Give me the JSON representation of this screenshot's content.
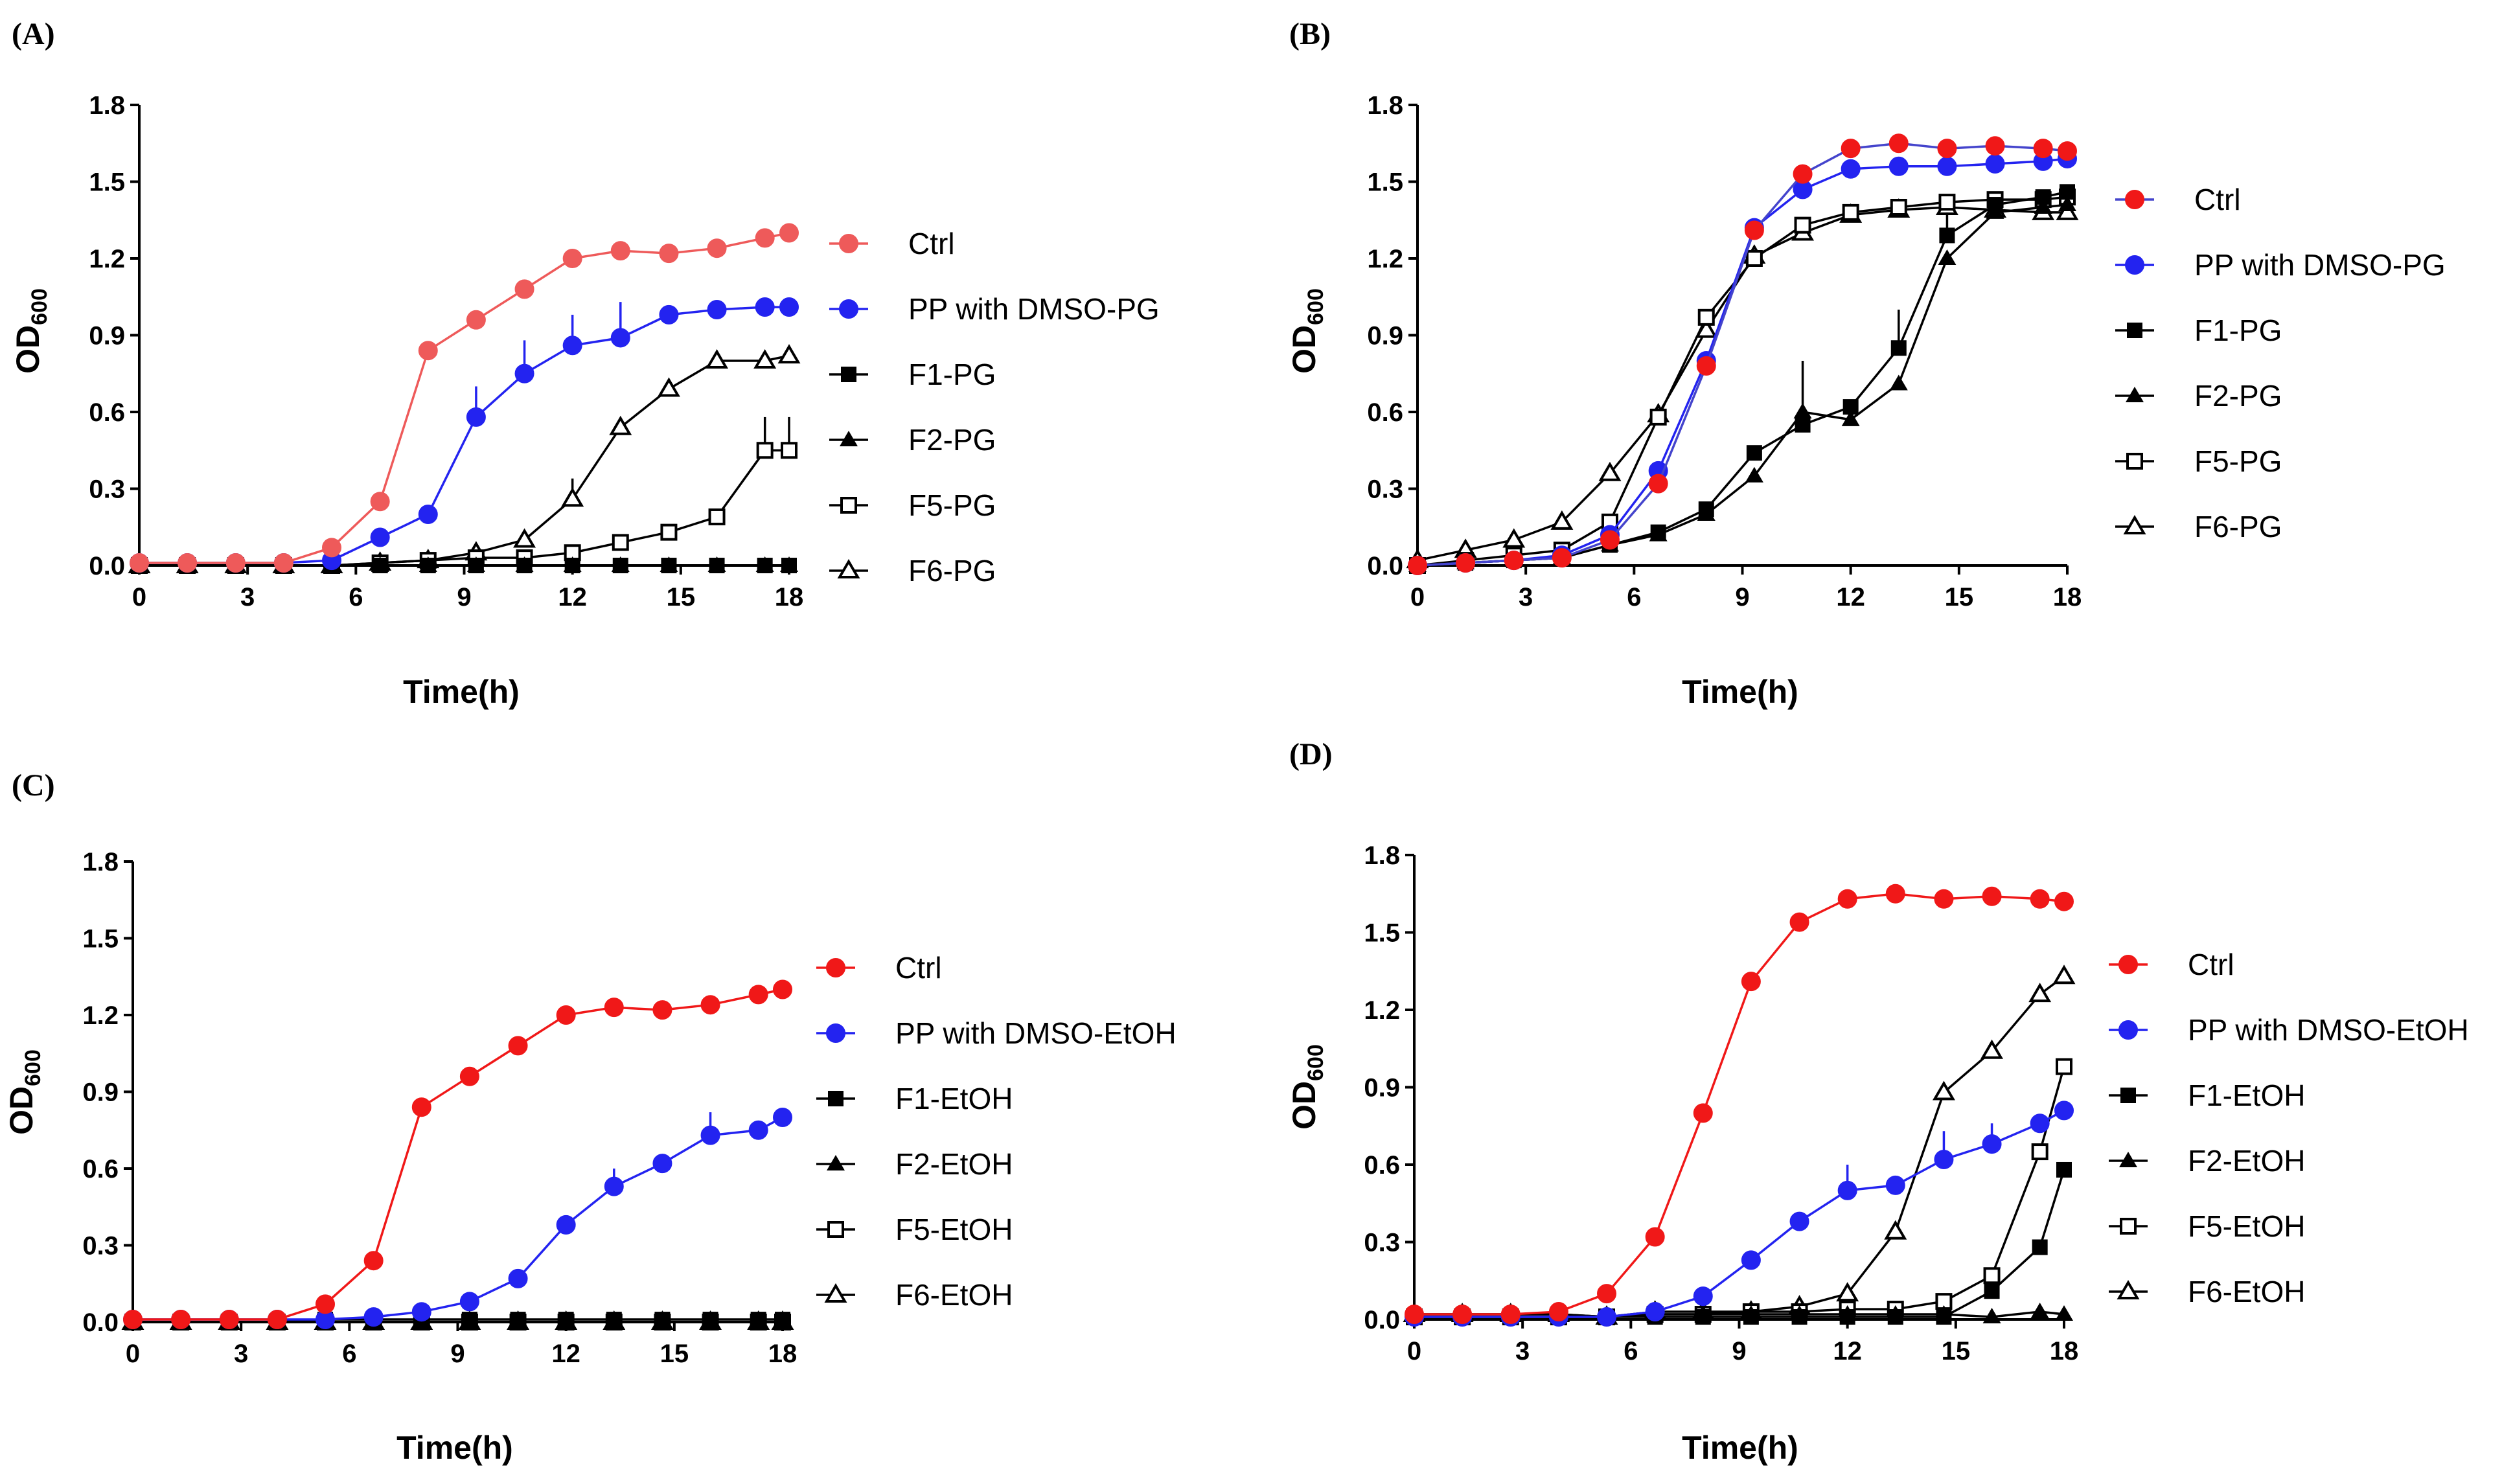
{
  "figure": {
    "y_unit_base": "OD",
    "y_unit_sub": "600",
    "x_title": "Time(h)"
  },
  "chart_data": [
    {
      "panel": "(A)",
      "type": "line",
      "xlabel": "Time(h)",
      "ylabel": "OD600",
      "xlim": [
        0,
        18
      ],
      "ylim": [
        0,
        1.8
      ],
      "xticks": [
        0,
        3,
        6,
        9,
        12,
        15,
        18
      ],
      "yticks": [
        "0.0",
        "0.3",
        "0.6",
        "0.9",
        "1.2",
        "1.5",
        "1.8"
      ],
      "x": [
        0,
        1.33,
        2.67,
        4,
        5.33,
        6.67,
        8,
        9.33,
        10.67,
        12,
        13.33,
        14.67,
        16,
        17.33,
        18
      ],
      "series": [
        {
          "name": "Ctrl",
          "marker": "circle-filled",
          "color": "#ee5a5a",
          "line": "#ee5a5a",
          "values": [
            0.01,
            0.01,
            0.01,
            0.01,
            0.07,
            0.25,
            0.84,
            0.96,
            1.08,
            1.2,
            1.23,
            1.22,
            1.24,
            1.28,
            1.3
          ],
          "err": []
        },
        {
          "name": "PP with DMSO-PG",
          "marker": "circle-filled",
          "color": "#2323f0",
          "line": "#2323f0",
          "values": [
            0.01,
            0.01,
            0.01,
            0.01,
            0.02,
            0.11,
            0.2,
            0.58,
            0.75,
            0.86,
            0.89,
            0.98,
            1.0,
            1.01,
            1.01
          ],
          "err": [
            [
              9.33,
              0.7
            ],
            [
              10.67,
              0.88
            ],
            [
              12,
              0.98
            ],
            [
              13.33,
              1.03
            ]
          ]
        },
        {
          "name": "F1-PG",
          "marker": "square-filled",
          "color": "#000000",
          "line": "#000000",
          "values": [
            0.0,
            0.0,
            0.0,
            0.0,
            0.0,
            0.0,
            0.0,
            0.0,
            0.0,
            0.0,
            0.0,
            0.0,
            0.0,
            0.0,
            0.0
          ],
          "err": []
        },
        {
          "name": "F2-PG",
          "marker": "triangle-filled",
          "color": "#000000",
          "line": "#000000",
          "values": [
            0.0,
            0.0,
            0.0,
            0.0,
            0.0,
            0.0,
            0.0,
            0.0,
            0.0,
            0.0,
            0.0,
            0.0,
            0.0,
            0.0,
            0.0
          ],
          "err": []
        },
        {
          "name": "F5-PG",
          "marker": "square-open",
          "color": "#000000",
          "line": "#000000",
          "values": [
            0.0,
            0.0,
            0.0,
            0.0,
            0.0,
            0.01,
            0.02,
            0.03,
            0.03,
            0.05,
            0.09,
            0.13,
            0.19,
            0.45,
            0.45
          ],
          "err": [
            [
              17.33,
              0.58
            ],
            [
              18,
              0.58
            ]
          ]
        },
        {
          "name": "F6-PG",
          "marker": "triangle-open",
          "color": "#000000",
          "line": "#000000",
          "values": [
            0.0,
            0.0,
            0.0,
            0.0,
            0.0,
            0.01,
            0.02,
            0.05,
            0.1,
            0.26,
            0.54,
            0.69,
            0.8,
            0.8,
            0.82
          ],
          "err": [
            [
              12,
              0.34
            ]
          ]
        }
      ]
    },
    {
      "panel": "(B)",
      "type": "line",
      "xlabel": "Time(h)",
      "ylabel": "OD600",
      "xlim": [
        0,
        18
      ],
      "ylim": [
        0,
        1.8
      ],
      "xticks": [
        0,
        3,
        6,
        9,
        12,
        15,
        18
      ],
      "yticks": [
        "0.0",
        "0.3",
        "0.6",
        "0.9",
        "1.2",
        "1.5",
        "1.8"
      ],
      "x": [
        0,
        1.33,
        2.67,
        4,
        5.33,
        6.67,
        8,
        9.33,
        10.67,
        12,
        13.33,
        14.67,
        16,
        17.33,
        18
      ],
      "series": [
        {
          "name": "Ctrl",
          "marker": "circle-filled",
          "color": "#f01818",
          "line": "#4444cc",
          "values": [
            0.0,
            0.01,
            0.02,
            0.03,
            0.1,
            0.32,
            0.78,
            1.31,
            1.53,
            1.63,
            1.65,
            1.63,
            1.64,
            1.63,
            1.62
          ],
          "err": []
        },
        {
          "name": "PP with DMSO-PG",
          "marker": "circle-filled",
          "color": "#2323f0",
          "line": "#2323f0",
          "values": [
            0.0,
            0.01,
            0.02,
            0.04,
            0.12,
            0.37,
            0.8,
            1.32,
            1.47,
            1.55,
            1.56,
            1.56,
            1.57,
            1.58,
            1.59
          ],
          "err": []
        },
        {
          "name": "F1-PG",
          "marker": "square-filled",
          "color": "#000000",
          "line": "#000000",
          "values": [
            0.0,
            0.01,
            0.02,
            0.03,
            0.08,
            0.13,
            0.22,
            0.44,
            0.55,
            0.62,
            0.85,
            1.29,
            1.41,
            1.44,
            1.46
          ],
          "err": [
            [
              10.67,
              0.8
            ],
            [
              13.33,
              1.0
            ],
            [
              14.67,
              1.38
            ]
          ]
        },
        {
          "name": "F2-PG",
          "marker": "triangle-filled",
          "color": "#000000",
          "line": "#000000",
          "values": [
            0.0,
            0.01,
            0.02,
            0.03,
            0.08,
            0.12,
            0.2,
            0.35,
            0.6,
            0.57,
            0.71,
            1.2,
            1.38,
            1.4,
            1.41
          ],
          "err": []
        },
        {
          "name": "F5-PG",
          "marker": "square-open",
          "color": "#000000",
          "line": "#000000",
          "values": [
            0.0,
            0.02,
            0.04,
            0.06,
            0.17,
            0.58,
            0.97,
            1.2,
            1.33,
            1.38,
            1.4,
            1.42,
            1.43,
            1.43,
            1.44
          ],
          "err": []
        },
        {
          "name": "F6-PG",
          "marker": "triangle-open",
          "color": "#000000",
          "line": "#000000",
          "values": [
            0.02,
            0.06,
            0.1,
            0.17,
            0.36,
            0.59,
            0.92,
            1.21,
            1.3,
            1.37,
            1.39,
            1.4,
            1.39,
            1.38,
            1.38
          ],
          "err": []
        }
      ]
    },
    {
      "panel": "(C)",
      "type": "line",
      "xlabel": "Time(h)",
      "ylabel": "OD600",
      "xlim": [
        0,
        18
      ],
      "ylim": [
        0,
        1.8
      ],
      "xticks": [
        0,
        3,
        6,
        9,
        12,
        15,
        18
      ],
      "yticks": [
        "0.0",
        "0.3",
        "0.6",
        "0.9",
        "1.2",
        "1.5",
        "1.8"
      ],
      "x": [
        0,
        1.33,
        2.67,
        4,
        5.33,
        6.67,
        8,
        9.33,
        10.67,
        12,
        13.33,
        14.67,
        16,
        17.33,
        18
      ],
      "series": [
        {
          "name": "Ctrl",
          "marker": "circle-filled",
          "color": "#f01818",
          "line": "#f01818",
          "values": [
            0.01,
            0.01,
            0.01,
            0.01,
            0.07,
            0.24,
            0.84,
            0.96,
            1.08,
            1.2,
            1.23,
            1.22,
            1.24,
            1.28,
            1.3
          ],
          "err": []
        },
        {
          "name": "PP with DMSO-EtOH",
          "marker": "circle-filled",
          "color": "#2323f0",
          "line": "#2323f0",
          "values": [
            0.01,
            0.01,
            0.01,
            0.01,
            0.01,
            0.02,
            0.04,
            0.08,
            0.17,
            0.38,
            0.53,
            0.62,
            0.73,
            0.75,
            0.8
          ],
          "err": [
            [
              13.33,
              0.6
            ],
            [
              16,
              0.82
            ]
          ]
        },
        {
          "name": "F1-EtOH",
          "marker": "square-filled",
          "color": "#000000",
          "line": "#000000",
          "values": [
            0.0,
            0.0,
            0.0,
            0.0,
            0.01,
            0.01,
            0.01,
            0.01,
            0.01,
            0.01,
            0.01,
            0.01,
            0.01,
            0.01,
            0.01
          ],
          "err": []
        },
        {
          "name": "F2-EtOH",
          "marker": "triangle-filled",
          "color": "#000000",
          "line": "#000000",
          "values": [
            0.0,
            0.0,
            0.0,
            0.0,
            0.0,
            0.0,
            0.0,
            0.0,
            0.0,
            0.0,
            0.0,
            0.0,
            0.0,
            0.0,
            0.0
          ],
          "err": []
        },
        {
          "name": "F5-EtOH",
          "marker": "square-open",
          "color": "#000000",
          "line": "#000000",
          "values": [
            0.0,
            0.0,
            0.0,
            0.0,
            0.0,
            0.0,
            0.0,
            0.0,
            0.0,
            0.0,
            0.0,
            0.0,
            0.0,
            0.0,
            0.0
          ],
          "err": []
        },
        {
          "name": "F6-EtOH",
          "marker": "triangle-open",
          "color": "#000000",
          "line": "#000000",
          "values": [
            0.0,
            0.0,
            0.0,
            0.0,
            0.0,
            0.0,
            0.0,
            0.0,
            0.0,
            0.0,
            0.0,
            0.0,
            0.0,
            0.0,
            0.0
          ],
          "err": []
        }
      ]
    },
    {
      "panel": "(D)",
      "type": "line",
      "xlabel": "Time(h)",
      "ylabel": "OD600",
      "xlim": [
        0,
        18
      ],
      "ylim": [
        0,
        1.8
      ],
      "xticks": [
        0,
        3,
        6,
        9,
        12,
        15,
        18
      ],
      "yticks": [
        "0.0",
        "0.3",
        "0.6",
        "0.9",
        "1.2",
        "1.5",
        "1.8"
      ],
      "x": [
        0,
        1.33,
        2.67,
        4,
        5.33,
        6.67,
        8,
        9.33,
        10.67,
        12,
        13.33,
        14.67,
        16,
        17.33,
        18
      ],
      "series": [
        {
          "name": "Ctrl",
          "marker": "circle-filled",
          "color": "#f01818",
          "line": "#f01818",
          "values": [
            0.02,
            0.02,
            0.02,
            0.03,
            0.1,
            0.32,
            0.8,
            1.31,
            1.54,
            1.63,
            1.65,
            1.63,
            1.64,
            1.63,
            1.62
          ],
          "err": []
        },
        {
          "name": "PP with DMSO-EtOH",
          "marker": "circle-filled",
          "color": "#2323f0",
          "line": "#2323f0",
          "values": [
            0.01,
            0.01,
            0.01,
            0.01,
            0.01,
            0.03,
            0.09,
            0.23,
            0.38,
            0.5,
            0.52,
            0.62,
            0.68,
            0.76,
            0.81
          ],
          "err": [
            [
              12,
              0.6
            ],
            [
              14.67,
              0.73
            ],
            [
              16,
              0.76
            ]
          ]
        },
        {
          "name": "F1-EtOH",
          "marker": "square-filled",
          "color": "#000000",
          "line": "#000000",
          "values": [
            0.01,
            0.01,
            0.01,
            0.01,
            0.01,
            0.01,
            0.01,
            0.01,
            0.01,
            0.01,
            0.01,
            0.01,
            0.11,
            0.28,
            0.58
          ],
          "err": []
        },
        {
          "name": "F2-EtOH",
          "marker": "triangle-filled",
          "color": "#000000",
          "line": "#000000",
          "values": [
            0.02,
            0.02,
            0.02,
            0.02,
            0.01,
            0.02,
            0.02,
            0.02,
            0.02,
            0.02,
            0.02,
            0.02,
            0.01,
            0.03,
            0.02
          ],
          "err": []
        },
        {
          "name": "F5-EtOH",
          "marker": "square-open",
          "color": "#000000",
          "line": "#000000",
          "values": [
            0.01,
            0.01,
            0.01,
            0.01,
            0.01,
            0.02,
            0.02,
            0.03,
            0.03,
            0.04,
            0.04,
            0.07,
            0.17,
            0.65,
            0.98
          ],
          "err": []
        },
        {
          "name": "F6-EtOH",
          "marker": "triangle-open",
          "color": "#000000",
          "line": "#000000",
          "values": [
            0.02,
            0.02,
            0.02,
            0.02,
            0.01,
            0.03,
            0.03,
            0.03,
            0.05,
            0.1,
            0.34,
            0.88,
            1.04,
            1.26,
            1.33
          ],
          "err": []
        }
      ]
    }
  ]
}
